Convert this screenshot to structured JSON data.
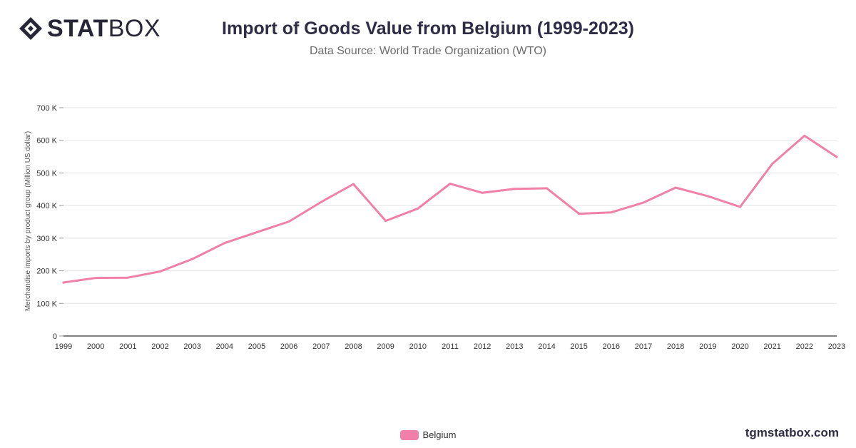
{
  "brand": {
    "logo_bold": "STAT",
    "logo_light": "BOX",
    "icon": "statbox-diamond-icon"
  },
  "header": {
    "title": "Import of Goods Value from Belgium (1999-2023)",
    "subtitle": "Data Source: World Trade Organization (WTO)"
  },
  "footer": {
    "site": "tgmstatbox.com"
  },
  "colors": {
    "series": "#f080a8",
    "grid": "#e3e3e3",
    "axis": "#333333",
    "title": "#2f2d45"
  },
  "chart_data": {
    "type": "line",
    "title": "Import of Goods Value from Belgium (1999-2023)",
    "subtitle": "Data Source: World Trade Organization (WTO)",
    "xlabel": "",
    "ylabel": "Merchandise imports by product group (Million US dollar)",
    "ylim": [
      0,
      700000
    ],
    "yticks": [
      0,
      100000,
      200000,
      300000,
      400000,
      500000,
      600000,
      700000
    ],
    "ytick_labels": [
      "0",
      "100 K",
      "200 K",
      "300 K",
      "400 K",
      "500 K",
      "600 K",
      "700 K"
    ],
    "grid": true,
    "legend": "bottom-center",
    "categories": [
      "1999",
      "2000",
      "2001",
      "2002",
      "2003",
      "2004",
      "2005",
      "2006",
      "2007",
      "2008",
      "2009",
      "2010",
      "2011",
      "2012",
      "2013",
      "2014",
      "2015",
      "2016",
      "2017",
      "2018",
      "2019",
      "2020",
      "2021",
      "2022",
      "2023"
    ],
    "series": [
      {
        "name": "Belgium",
        "color": "#f080a8",
        "values": [
          164000,
          178000,
          179000,
          198000,
          236000,
          285000,
          318000,
          351000,
          411000,
          466000,
          353000,
          391000,
          467000,
          439000,
          451000,
          453000,
          375000,
          379000,
          409000,
          455000,
          429000,
          396000,
          528000,
          614000,
          549000
        ]
      }
    ]
  }
}
